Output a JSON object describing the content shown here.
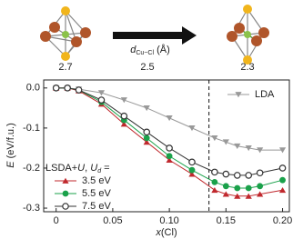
{
  "chart_data": {
    "type": "line",
    "top_labels": [
      "2.7",
      "2.5",
      "2.3"
    ],
    "top_axis_label": [
      "d",
      "Cu−Cl",
      " (Å)"
    ],
    "xlabel": [
      "x",
      "(Cl)"
    ],
    "ylabel": [
      "E",
      " (eV/f.u.)"
    ],
    "legend_title": [
      "LSDA+",
      "U",
      ", ",
      "U",
      "d",
      " ="
    ],
    "xlim": [
      -0.011,
      0.206
    ],
    "ylim": [
      -0.309,
      0.02
    ],
    "xticks": [
      0,
      0.05,
      {
        "value": 0.1,
        "label": "0.10"
      },
      0.15,
      {
        "value": 0.2,
        "label": "0.20"
      }
    ],
    "yticks": [
      {
        "value": 0,
        "label": "0.0"
      },
      -0.1,
      -0.2,
      -0.3
    ],
    "vline": 0.135,
    "x": [
      0,
      0.01,
      0.02,
      0.04,
      0.06,
      0.08,
      0.1,
      0.12,
      0.14,
      0.15,
      0.16,
      0.17,
      0.18,
      0.2
    ],
    "series": [
      {
        "name": "LDA",
        "color": "#999999",
        "marker": "triangle-down",
        "values": [
          0,
          0,
          -0.003,
          -0.012,
          -0.03,
          -0.05,
          -0.075,
          -0.1,
          -0.125,
          -0.135,
          -0.145,
          -0.15,
          -0.155,
          -0.155
        ]
      },
      {
        "name": "3.5 eV",
        "color": "#c0282d",
        "marker": "triangle-up",
        "values": [
          0,
          0,
          -0.007,
          -0.04,
          -0.09,
          -0.135,
          -0.18,
          -0.215,
          -0.255,
          -0.265,
          -0.27,
          -0.27,
          -0.265,
          -0.255
        ]
      },
      {
        "name": "5.5 eV",
        "color": "#1aa14a",
        "marker": "circle",
        "values": [
          0,
          0,
          -0.005,
          -0.035,
          -0.08,
          -0.125,
          -0.17,
          -0.205,
          -0.235,
          -0.245,
          -0.25,
          -0.25,
          -0.245,
          -0.23
        ]
      },
      {
        "name": "7.5 eV",
        "color": "#333333",
        "marker": "circle-open",
        "values": [
          0,
          0,
          -0.005,
          -0.03,
          -0.07,
          -0.11,
          -0.15,
          -0.185,
          -0.21,
          -0.215,
          -0.218,
          -0.218,
          -0.212,
          -0.2
        ]
      }
    ]
  }
}
